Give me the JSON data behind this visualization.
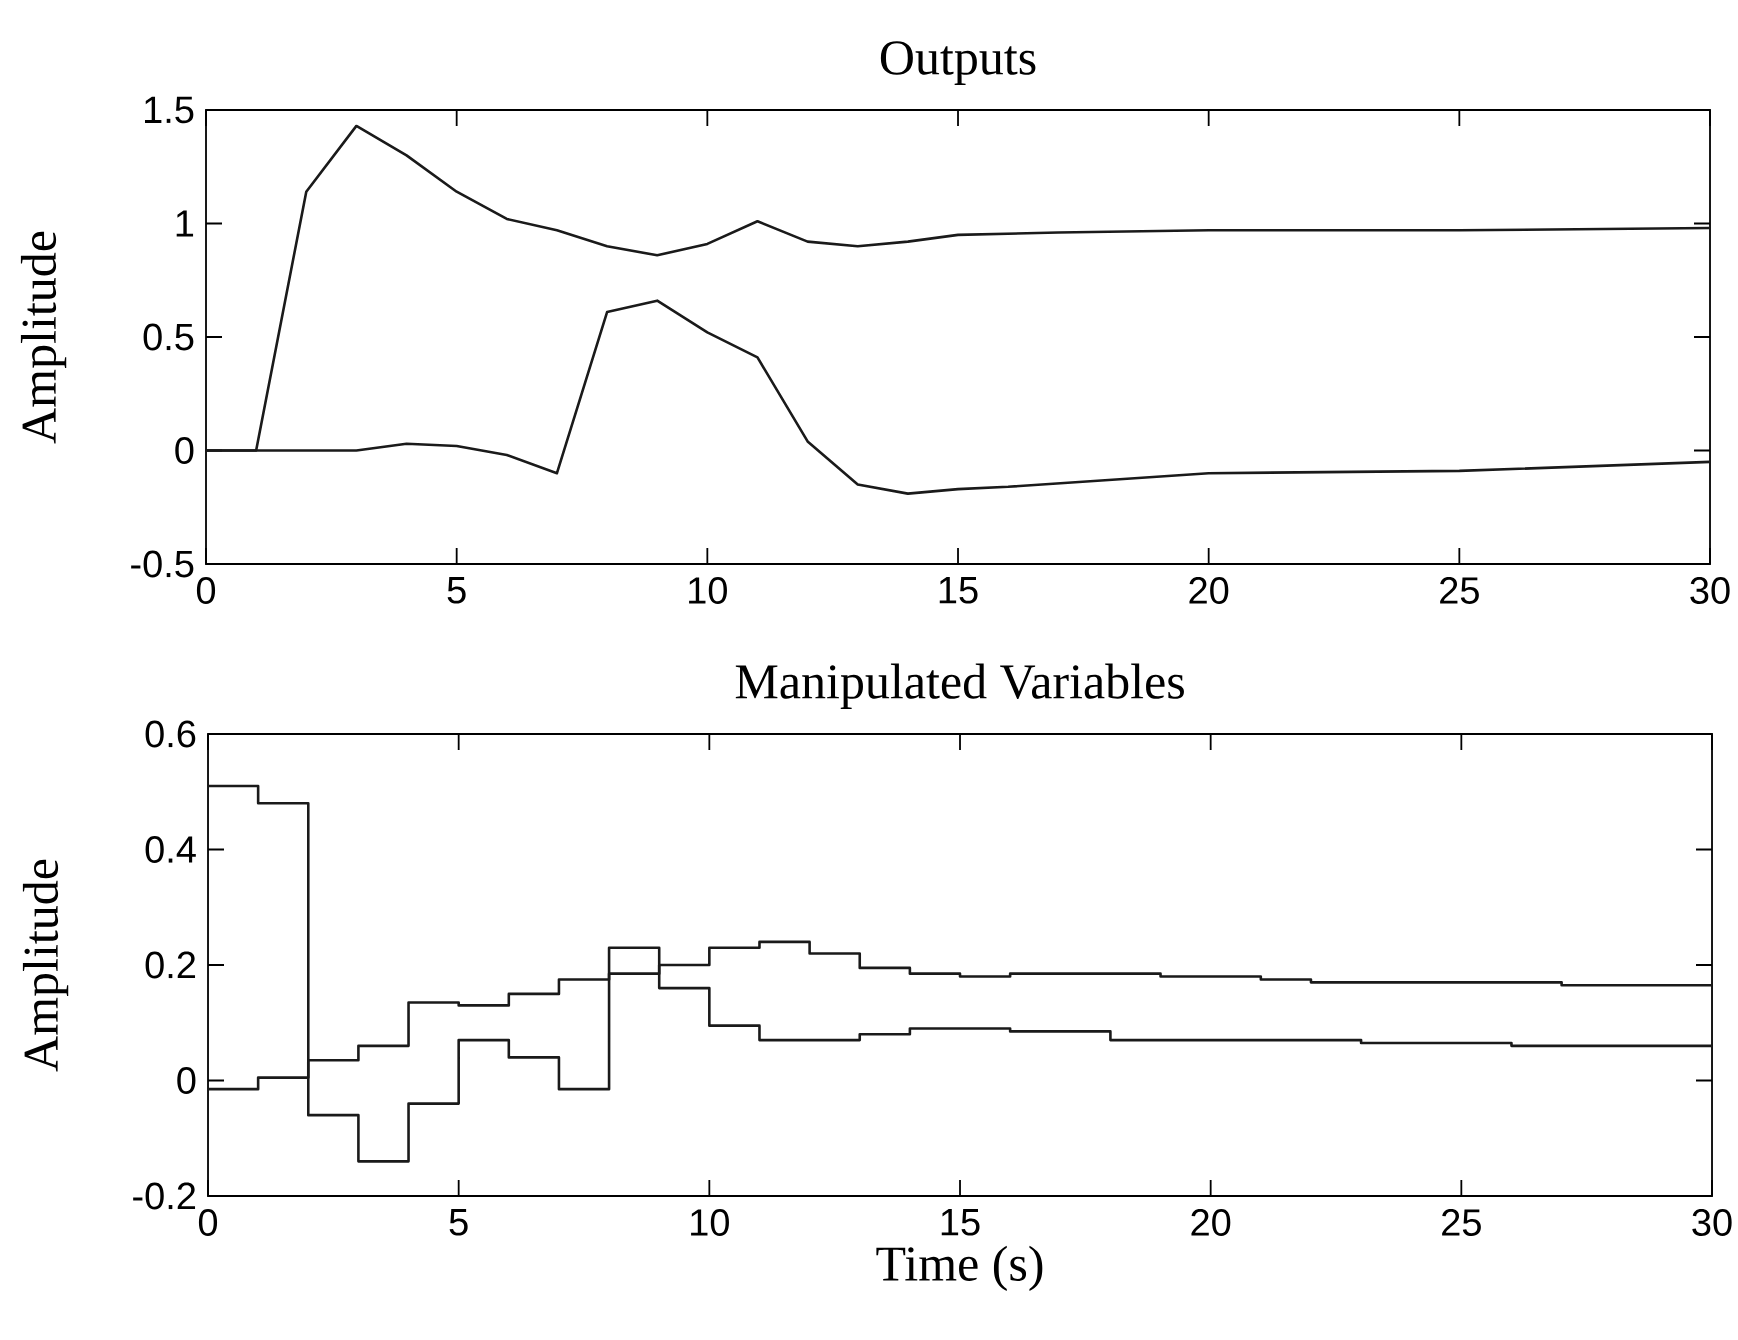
{
  "chart_data": [
    {
      "type": "line",
      "title": "Outputs",
      "ylabel": "Amplitude",
      "xlim": [
        0,
        30
      ],
      "xticks": [
        0,
        5,
        10,
        15,
        20,
        25,
        30
      ],
      "ylim": [
        -0.5,
        1.5
      ],
      "yticks": [
        -0.5,
        0,
        0.5,
        1,
        1.5
      ],
      "line_style": "solid",
      "series": [
        {
          "color": "#1a1a1a",
          "x": [
            0,
            1,
            2,
            3,
            4,
            5,
            6,
            7,
            8,
            9,
            10,
            11,
            12,
            13,
            14,
            15,
            17,
            20,
            25,
            30
          ],
          "values": [
            0,
            0,
            1.14,
            1.43,
            1.3,
            1.14,
            1.02,
            0.97,
            0.9,
            0.86,
            0.91,
            1.01,
            0.92,
            0.9,
            0.92,
            0.95,
            0.96,
            0.97,
            0.97,
            0.98
          ]
        },
        {
          "color": "#1a1a1a",
          "x": [
            0,
            3,
            4,
            5,
            6,
            7,
            8,
            9,
            10,
            11,
            12,
            13,
            14,
            15,
            16,
            20,
            25,
            30
          ],
          "values": [
            0,
            0,
            0.03,
            0.02,
            -0.02,
            -0.1,
            0.61,
            0.66,
            0.52,
            0.41,
            0.04,
            -0.15,
            -0.19,
            -0.17,
            -0.16,
            -0.1,
            -0.09,
            -0.05
          ]
        }
      ]
    },
    {
      "type": "step",
      "title": "Manipulated Variables",
      "xlabel": "Time (s)",
      "ylabel": "Amplitude",
      "xlim": [
        0,
        30
      ],
      "xticks": [
        0,
        5,
        10,
        15,
        20,
        25,
        30
      ],
      "ylim": [
        -0.2,
        0.6
      ],
      "yticks": [
        -0.2,
        0,
        0.2,
        0.4,
        0.6
      ],
      "line_style": "solid",
      "series": [
        {
          "color": "#1a1a1a",
          "x": [
            0,
            1,
            2,
            3,
            4,
            5,
            6,
            7,
            8,
            9,
            10,
            11,
            12,
            13,
            14,
            15,
            16,
            18,
            23,
            26,
            30
          ],
          "values": [
            0.51,
            0.48,
            -0.06,
            -0.14,
            -0.04,
            0.07,
            0.04,
            -0.015,
            0.23,
            0.16,
            0.095,
            0.07,
            0.07,
            0.08,
            0.09,
            0.09,
            0.085,
            0.07,
            0.065,
            0.06,
            0.06
          ]
        },
        {
          "color": "#1a1a1a",
          "x": [
            0,
            1,
            2,
            3,
            4,
            5,
            6,
            7,
            8,
            9,
            10,
            11,
            12,
            13,
            14,
            15,
            16,
            19,
            21,
            22,
            27,
            30
          ],
          "values": [
            -0.015,
            0.005,
            0.035,
            0.06,
            0.135,
            0.13,
            0.15,
            0.175,
            0.185,
            0.2,
            0.23,
            0.24,
            0.22,
            0.195,
            0.185,
            0.18,
            0.185,
            0.18,
            0.175,
            0.17,
            0.165,
            0.165
          ]
        }
      ]
    }
  ]
}
